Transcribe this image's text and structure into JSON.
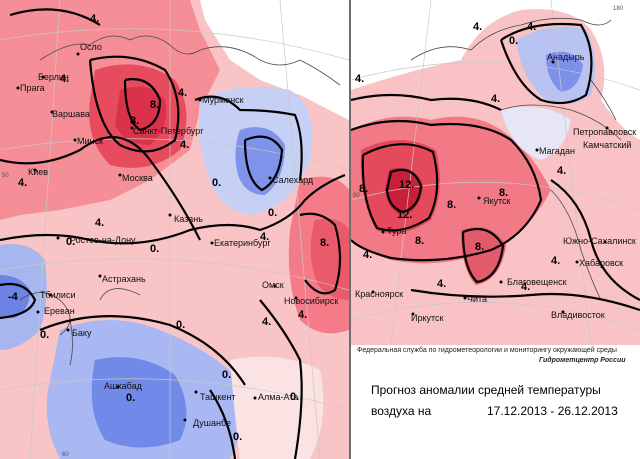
{
  "credits": {
    "agency": "Федеральная служба по гидрометеорологии и мониторингу окружающей среды",
    "center": "Гидрометцентр России",
    "title_line1": "Прогноз аномалии средней температуры",
    "title_line2_prefix": "воздуха на",
    "title_line2_dates": "17.12.2013 - 26.12.2013"
  },
  "left_map": {
    "cities": [
      {
        "name": "Осло"
      },
      {
        "name": "Берлин"
      },
      {
        "name": "Прага"
      },
      {
        "name": "Варшава"
      },
      {
        "name": "Минск"
      },
      {
        "name": "Киев"
      },
      {
        "name": "Москва"
      },
      {
        "name": "Санкт-Петербург"
      },
      {
        "name": "Мурманск"
      },
      {
        "name": "Салехард"
      },
      {
        "name": "Казань"
      },
      {
        "name": "Ростов-на-Дону"
      },
      {
        "name": "Екатеринбург"
      },
      {
        "name": "Астрахань"
      },
      {
        "name": "Тбилиси"
      },
      {
        "name": "Ереван"
      },
      {
        "name": "Баку"
      },
      {
        "name": "Омск"
      },
      {
        "name": "Новосибирск"
      },
      {
        "name": "Ашхабад"
      },
      {
        "name": "Ташкент"
      },
      {
        "name": "Алма-Ата"
      },
      {
        "name": "Душанбе"
      }
    ],
    "contour_labels": [
      "4.",
      "4.",
      "8.",
      "8.",
      "4.",
      "4.",
      "4.",
      "4.",
      "0.",
      "0.",
      "0.",
      "0.",
      "-4",
      "0.",
      "4.",
      "8.",
      "4.",
      "4.",
      "0.",
      "0.",
      "0.",
      "0.",
      "0."
    ],
    "edge_labels": [
      "60",
      "50"
    ]
  },
  "right_map": {
    "cities": [
      {
        "name": "Анадырь"
      },
      {
        "name": "Петропавловск"
      },
      {
        "name": "Камчатский"
      },
      {
        "name": "Магадан"
      },
      {
        "name": "Якутск"
      },
      {
        "name": "Тура"
      },
      {
        "name": "Южно-Сахалинск"
      },
      {
        "name": "Хабаровск"
      },
      {
        "name": "Благовещенск"
      },
      {
        "name": "Красноярск"
      },
      {
        "name": "Чита"
      },
      {
        "name": "Иркутск"
      },
      {
        "name": "Владивосток"
      }
    ],
    "contour_labels": [
      "4.",
      "4.",
      "0.",
      "4.",
      "4.",
      "8.",
      "8.",
      "12.",
      "12.",
      "8.",
      "8.",
      "8.",
      "4.",
      "4.",
      "4.",
      "4.",
      "4."
    ],
    "edge_labels": [
      "90",
      "180"
    ]
  },
  "colors": {
    "deep_warm": "#e0344a",
    "warm": "#f0707d",
    "light_warm": "#f8b4ba",
    "pale_warm": "#fcdcdc",
    "neutral": "#ffffff",
    "pale_cold": "#d8e0f6",
    "cold": "#9aaaf0",
    "deep_cold": "#5a70e0"
  }
}
